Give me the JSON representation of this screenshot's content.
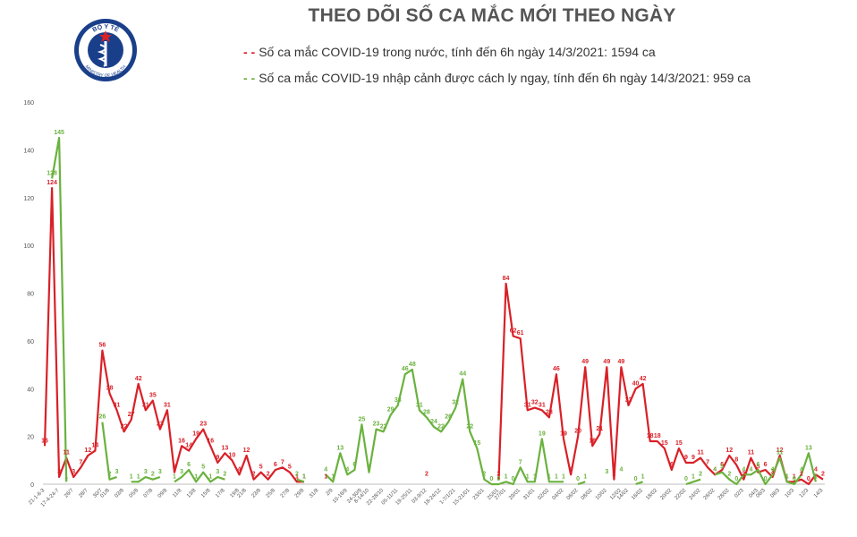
{
  "chart_data": {
    "type": "line",
    "title": "THEO DÕI SỐ CA MẮC MỚI THEO NGÀY",
    "logo": {
      "text_top": "BỘ Y TẾ",
      "text_bottom": "MINISTRY OF HEALTH"
    },
    "ylim": [
      0,
      160
    ],
    "yticks": [
      0,
      20,
      40,
      60,
      80,
      100,
      120,
      140,
      160
    ],
    "grid": false,
    "x_tick_labels": [
      "21-1-6-3",
      "17-4-24-7",
      "26/7",
      "28/7",
      "30/7",
      "01/8",
      "03/8",
      "05/8",
      "07/8",
      "09/8",
      "11/8",
      "13/8",
      "15/8",
      "17/8",
      "19/8",
      "21/8",
      "23/8",
      "25/8",
      "27/8",
      "29/8",
      "31/8",
      "2/9",
      "10-16/9",
      "24-30/9",
      "8-14/10",
      "22-28/10",
      "05-11/11",
      "19-25/11",
      "03-9/12",
      "18-24/12",
      "1-7/1/21",
      "15-21/01",
      "23/01",
      "25/01",
      "27/01",
      "29/01",
      "31/01",
      "02/02",
      "04/02",
      "06/02",
      "08/02",
      "10/02",
      "12/02",
      "14/02",
      "16/02",
      "18/02",
      "20/02",
      "22/02",
      "24/02",
      "26/02",
      "28/02",
      "02/3",
      "04/3",
      "06/3",
      "08/3",
      "10/3",
      "12/3",
      "14/3"
    ],
    "series": [
      {
        "name": "Số ca mắc COVID-19 trong nước, tính đến 6h ngày 14/3/2021: 1594 ca",
        "color": "#d92027",
        "values": [
          16,
          124,
          3,
          11,
          3,
          7,
          12,
          14,
          56,
          38,
          31,
          22,
          27,
          42,
          31,
          35,
          23,
          31,
          5,
          16,
          14,
          19,
          23,
          16,
          9,
          13,
          10,
          4,
          12,
          2,
          5,
          2,
          6,
          7,
          5,
          1,
          1,
          null,
          null,
          1,
          null,
          null,
          null,
          null,
          null,
          null,
          null,
          null,
          null,
          null,
          null,
          null,
          null,
          2,
          null,
          null,
          null,
          null,
          null,
          null,
          null,
          null,
          null,
          2,
          84,
          62,
          61,
          31,
          32,
          31,
          28,
          46,
          19,
          4,
          20,
          49,
          16,
          21,
          49,
          2,
          49,
          33,
          40,
          42,
          18,
          18,
          15,
          6,
          15,
          9,
          9,
          11,
          7,
          4,
          6,
          12,
          8,
          2,
          11,
          5,
          6,
          3,
          12,
          1,
          1,
          2,
          0,
          4,
          2
        ]
      },
      {
        "name": "Số ca mắc COVID-19 nhập cảnh được cách ly ngay, tính đến 6h ngày 14/3/2021: 959 ca",
        "color": "#6ab23e",
        "values": [
          null,
          128,
          145,
          1,
          null,
          null,
          null,
          null,
          26,
          2,
          3,
          null,
          1,
          1,
          3,
          2,
          3,
          null,
          1,
          3,
          6,
          1,
          5,
          1,
          3,
          2,
          null,
          null,
          null,
          null,
          null,
          null,
          null,
          null,
          null,
          2,
          1,
          null,
          null,
          4,
          1,
          13,
          4,
          6,
          25,
          5,
          23,
          22,
          29,
          33,
          46,
          48,
          31,
          28,
          24,
          22,
          26,
          32,
          44,
          22,
          15,
          2,
          0,
          0,
          1,
          0,
          7,
          1,
          1,
          19,
          1,
          1,
          1,
          null,
          0,
          1,
          null,
          null,
          3,
          null,
          4,
          null,
          0,
          1,
          null,
          null,
          null,
          null,
          null,
          0,
          1,
          2,
          null,
          4,
          5,
          2,
          0,
          4,
          4,
          6,
          0,
          4,
          11,
          1,
          0,
          4,
          13,
          1
        ]
      }
    ]
  }
}
